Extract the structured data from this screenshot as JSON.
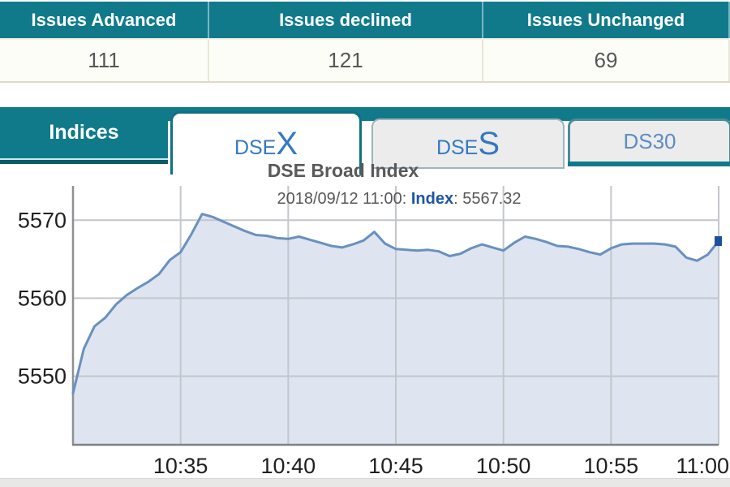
{
  "colors": {
    "teal": "#107a8b",
    "teal_dark": "#0a5a67",
    "teal_light": "#c9e9ee",
    "tab_text_blue": "#3478c2",
    "tab_text_blue_light": "#5c8cc6",
    "subtitle_emph": "#1c55a6",
    "chart_line": "#6990bf",
    "chart_fill": "#dee5f0",
    "chart_marker": "#1d4fa0",
    "grid": "#c3c6cb",
    "axis": "#8e9194",
    "tick_text": "#1f1f1f"
  },
  "summary_table": {
    "columns": [
      {
        "header": "Issues Advanced",
        "value": "111"
      },
      {
        "header": "Issues declined",
        "value": "121"
      },
      {
        "header": "Issues Unchanged",
        "value": "69"
      }
    ]
  },
  "tabs": {
    "bar_label": "Indices",
    "items": [
      {
        "name": "DSEX",
        "active": true,
        "parts": [
          {
            "text": "DSE",
            "size": "small"
          },
          {
            "text": "X",
            "size": "big"
          }
        ]
      },
      {
        "name": "DSES",
        "active": false,
        "parts": [
          {
            "text": "DSE",
            "size": "small"
          },
          {
            "text": "S",
            "size": "big"
          }
        ]
      },
      {
        "name": "DS30",
        "active": false,
        "parts": [
          {
            "text": "DS30",
            "size": "med"
          }
        ]
      }
    ]
  },
  "chart_data": {
    "type": "area",
    "title": "DSE Broad Index",
    "subtitle_parts": [
      {
        "text": "2018/09/12 11:00: ",
        "emph": false
      },
      {
        "text": "Index",
        "emph": true
      },
      {
        "text": ": 5567.32",
        "emph": false
      }
    ],
    "xlabel": "",
    "ylabel": "",
    "grid": true,
    "x_start_time": "10:30",
    "x_range_minutes": [
      0,
      30
    ],
    "ylim": [
      5541.2,
      5574.4
    ],
    "x_ticks": [
      {
        "label": "10:35",
        "minute": 5
      },
      {
        "label": "10:40",
        "minute": 10
      },
      {
        "label": "10:45",
        "minute": 15
      },
      {
        "label": "10:50",
        "minute": 20
      },
      {
        "label": "10:55",
        "minute": 25
      },
      {
        "label": "11:00",
        "minute": 30
      }
    ],
    "y_ticks": [
      {
        "label": "5550",
        "value": 5550
      },
      {
        "label": "5560",
        "value": 5560
      },
      {
        "label": "5570",
        "value": 5570
      }
    ],
    "series": [
      {
        "name": "Index",
        "end_marker": true,
        "last_value": 5567.32,
        "points": [
          [
            0,
            5547.8
          ],
          [
            0.5,
            5553.5
          ],
          [
            1,
            5556.4
          ],
          [
            1.5,
            5557.5
          ],
          [
            2,
            5559.2
          ],
          [
            2.5,
            5560.4
          ],
          [
            3,
            5561.3
          ],
          [
            3.5,
            5562.1
          ],
          [
            4,
            5563.1
          ],
          [
            4.5,
            5564.9
          ],
          [
            5,
            5565.9
          ],
          [
            5.5,
            5568.2
          ],
          [
            6,
            5570.8
          ],
          [
            6.5,
            5570.4
          ],
          [
            7,
            5569.8
          ],
          [
            7.5,
            5569.2
          ],
          [
            8,
            5568.6
          ],
          [
            8.5,
            5568.1
          ],
          [
            9,
            5568.0
          ],
          [
            9.5,
            5567.7
          ],
          [
            10,
            5567.6
          ],
          [
            10.5,
            5567.9
          ],
          [
            11,
            5567.5
          ],
          [
            11.5,
            5567.1
          ],
          [
            12,
            5566.7
          ],
          [
            12.5,
            5566.5
          ],
          [
            13,
            5566.9
          ],
          [
            13.5,
            5567.4
          ],
          [
            14,
            5568.5
          ],
          [
            14.5,
            5567.0
          ],
          [
            15,
            5566.3
          ],
          [
            15.5,
            5566.2
          ],
          [
            16,
            5566.1
          ],
          [
            16.5,
            5566.2
          ],
          [
            17,
            5566.0
          ],
          [
            17.5,
            5565.4
          ],
          [
            18,
            5565.7
          ],
          [
            18.5,
            5566.4
          ],
          [
            19,
            5566.9
          ],
          [
            19.5,
            5566.5
          ],
          [
            20,
            5566.1
          ],
          [
            20.5,
            5567.1
          ],
          [
            21,
            5567.9
          ],
          [
            21.5,
            5567.6
          ],
          [
            22,
            5567.2
          ],
          [
            22.5,
            5566.7
          ],
          [
            23,
            5566.6
          ],
          [
            23.5,
            5566.3
          ],
          [
            24,
            5565.9
          ],
          [
            24.5,
            5565.6
          ],
          [
            25,
            5566.4
          ],
          [
            25.5,
            5566.9
          ],
          [
            26,
            5567.0
          ],
          [
            26.5,
            5567.0
          ],
          [
            27,
            5567.0
          ],
          [
            27.5,
            5566.9
          ],
          [
            28,
            5566.6
          ],
          [
            28.5,
            5565.2
          ],
          [
            29,
            5564.8
          ],
          [
            29.5,
            5565.6
          ],
          [
            30,
            5567.32
          ]
        ]
      }
    ]
  }
}
